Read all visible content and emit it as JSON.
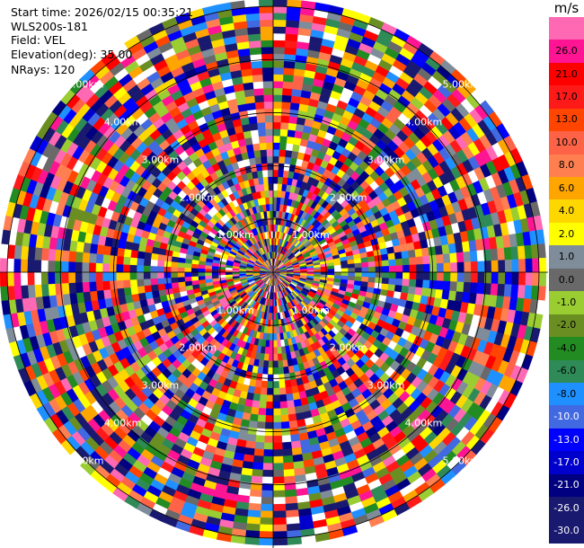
{
  "info": {
    "start_time": "Start time: 2026/02/15 00:35:21",
    "station": "WLS200s-181",
    "field": "Field: VEL",
    "elevation": "Elevation(deg): 35.00",
    "nrays": "NRays: 120"
  },
  "colorbar": {
    "unit": "m/s",
    "levels": [
      {
        "label": "",
        "color": "#ff69b4"
      },
      {
        "label": "26.0",
        "color": "#ff1493"
      },
      {
        "label": "21.0",
        "color": "#ff0000"
      },
      {
        "label": "17.0",
        "color": "#ff1a1a"
      },
      {
        "label": "13.0",
        "color": "#ff4500"
      },
      {
        "label": "10.0",
        "color": "#ff6347"
      },
      {
        "label": "8.0",
        "color": "#ff7f50"
      },
      {
        "label": "6.0",
        "color": "#ffa500"
      },
      {
        "label": "4.0",
        "color": "#ffd700"
      },
      {
        "label": "2.0",
        "color": "#ffff00"
      },
      {
        "label": "1.0",
        "color": "#7f8c99"
      },
      {
        "label": "0.0",
        "color": "#696969"
      },
      {
        "label": "-1.0",
        "color": "#9acd32"
      },
      {
        "label": "-2.0",
        "color": "#6b8e23"
      },
      {
        "label": "-4.0",
        "color": "#228b22"
      },
      {
        "label": "-6.0",
        "color": "#2e8b57"
      },
      {
        "label": "-8.0",
        "color": "#1e90ff"
      },
      {
        "label": "-10.0",
        "color": "#4169e1"
      },
      {
        "label": "-13.0",
        "color": "#0000ff"
      },
      {
        "label": "-17.0",
        "color": "#0000cd"
      },
      {
        "label": "-21.0",
        "color": "#000080"
      },
      {
        "label": "-26.0",
        "color": "#191970"
      },
      {
        "label": "-30.0",
        "color": "#191970"
      }
    ]
  },
  "chart_data": {
    "type": "heatmap",
    "projection": "polar PPI",
    "field": "VEL",
    "units": "m/s",
    "nrays": 120,
    "ngates": 40,
    "range_rings_km": [
      1,
      2,
      3,
      4,
      5
    ],
    "ring_labels": [
      "1.00km",
      "2.00km",
      "3.00km",
      "4.00km",
      "5.00km"
    ],
    "value_range": [
      -30.0,
      26.0
    ],
    "color_levels": [
      26.0,
      21.0,
      17.0,
      13.0,
      10.0,
      8.0,
      6.0,
      4.0,
      2.0,
      1.0,
      0.0,
      -1.0,
      -2.0,
      -4.0,
      -6.0,
      -8.0,
      -10.0,
      -13.0,
      -17.0,
      -21.0,
      -26.0,
      -30.0
    ],
    "pattern": "noisy velocities across all gates (values scattered over full colour scale)"
  }
}
